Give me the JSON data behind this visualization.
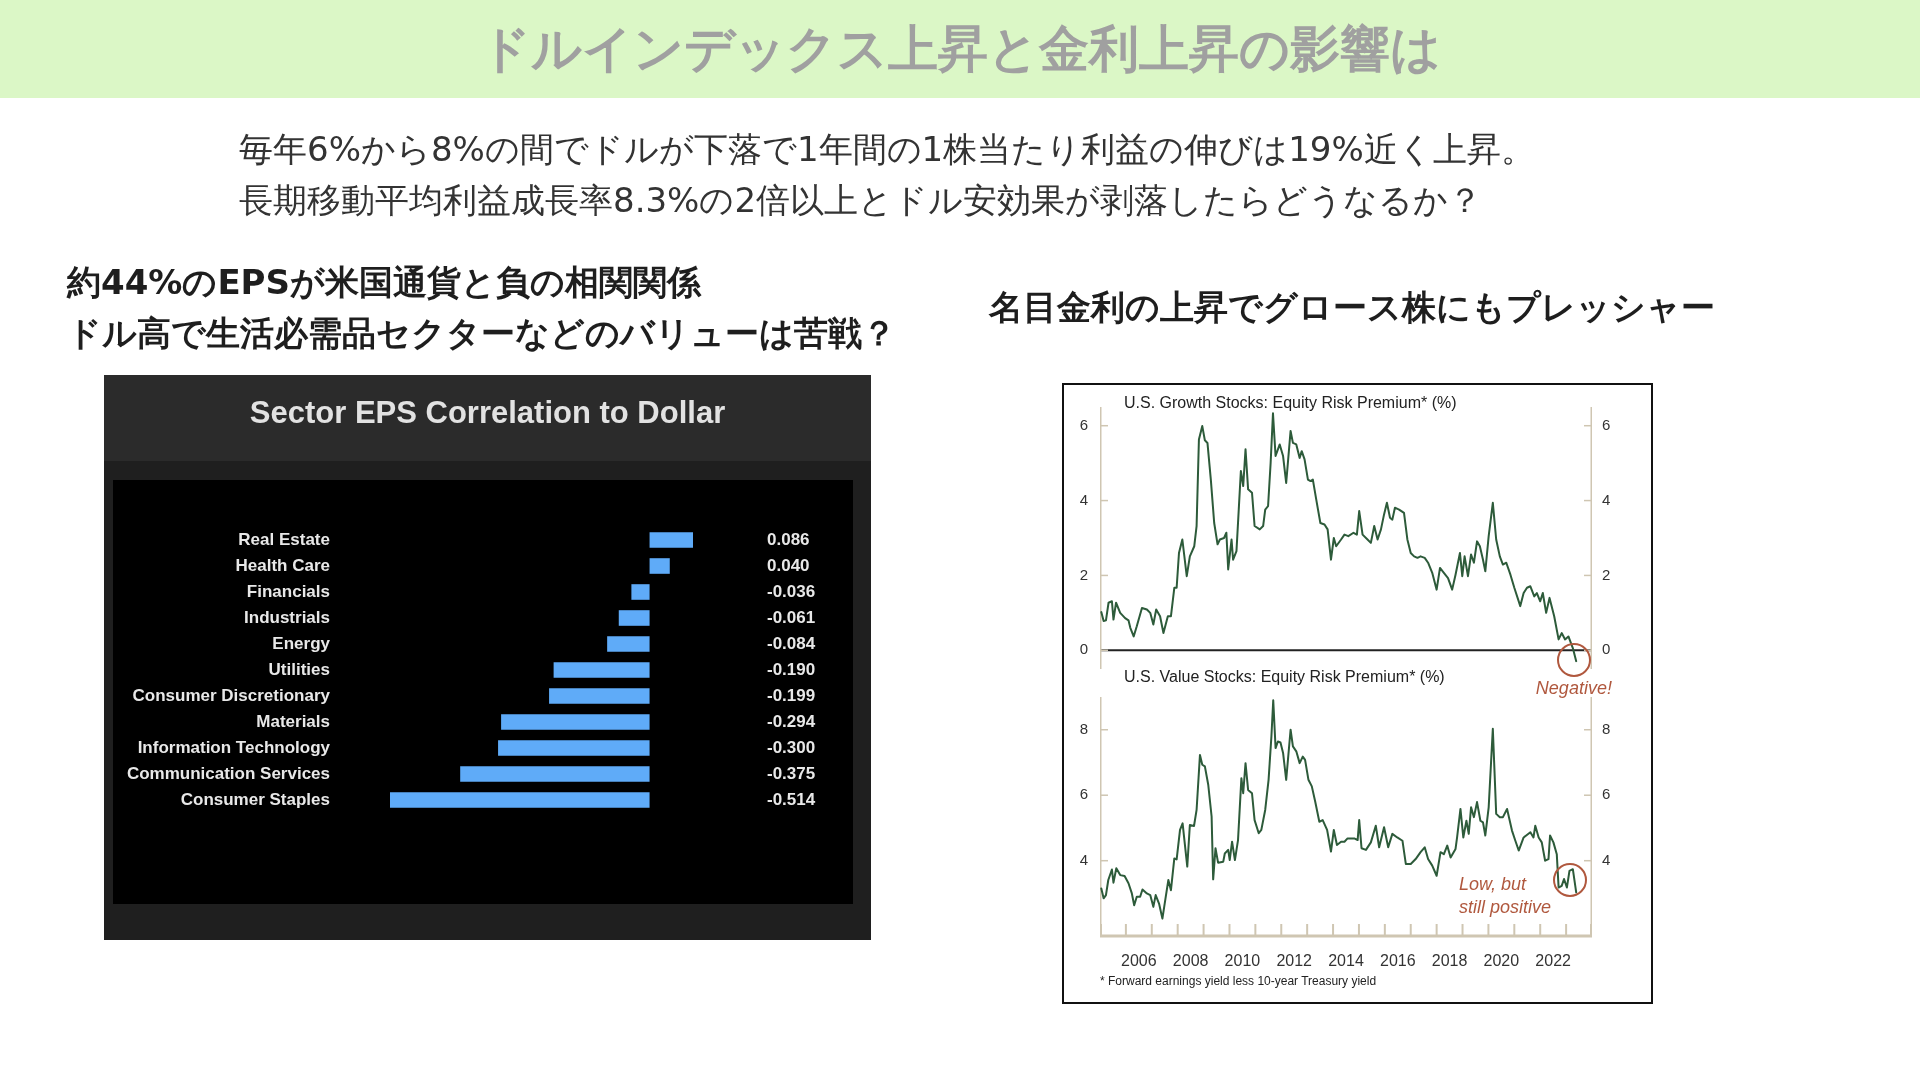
{
  "chart_data": [
    {
      "type": "other",
      "title": "ドルインデックス上昇と金利上昇の影響は",
      "annotations": [
        "毎年6%から8%の間でドルが下落で1年間の1株当たり利益の伸びは19%近く上昇。",
        "長期移動平均利益成長率8.3%の2倍以上とドル安効果が剥落したらどうなるか？"
      ]
    },
    {
      "type": "bar",
      "orientation": "horizontal",
      "title": "Sector EPS Correlation to Dollar",
      "subtitle": "約44%のEPSが米国通貨と負の相関関係",
      "annotations": [
        "ドル高で生活必需品セクターなどのバリューは苦戦？"
      ],
      "categories": [
        "Real Estate",
        "Health Care",
        "Financials",
        "Industrials",
        "Energy",
        "Utilities",
        "Consumer Discretionary",
        "Materials",
        "Information Technology",
        "Communication Services",
        "Consumer Staples"
      ],
      "values": [
        0.086,
        0.04,
        -0.036,
        -0.061,
        -0.084,
        -0.19,
        -0.199,
        -0.294,
        -0.3,
        -0.375,
        -0.514
      ],
      "value_labels": [
        "0.086",
        "0.040",
        "-0.036",
        "-0.061",
        "-0.084",
        "-0.190",
        "-0.199",
        "-0.294",
        "-0.300",
        "-0.375",
        "-0.514"
      ],
      "color": "#5fabf8",
      "tick_labels": "y"
    },
    {
      "type": "line",
      "title": "U.S. Growth Stocks: Equity Risk Premium* (%)",
      "subtitle": "名目金利の上昇でグロース株にもプレッシャー",
      "color": "#2d5b3a",
      "x": [
        2005.05,
        2005.14,
        2005.23,
        2005.33,
        2005.46,
        2005.52,
        2005.62,
        2005.78,
        2005.97,
        2006.1,
        2006.17,
        2006.3,
        2006.42,
        2006.62,
        2006.81,
        2006.94,
        2007.06,
        2007.17,
        2007.32,
        2007.45,
        2007.62,
        2007.74,
        2007.87,
        2007.96,
        2008.05,
        2008.18,
        2008.35,
        2008.47,
        2008.64,
        2008.73,
        2008.82,
        2008.95,
        2009.05,
        2009.15,
        2009.28,
        2009.41,
        2009.54,
        2009.63,
        2009.79,
        2009.88,
        2009.95,
        2010.08,
        2010.14,
        2010.27,
        2010.44,
        2010.53,
        2010.62,
        2010.72,
        2010.87,
        2010.97,
        2011.17,
        2011.3,
        2011.38,
        2011.49,
        2011.59,
        2011.68,
        2011.78,
        2011.94,
        2012.07,
        2012.19,
        2012.36,
        2012.45,
        2012.58,
        2012.71,
        2012.79,
        2012.9,
        2013.03,
        2013.13,
        2013.22,
        2013.35,
        2013.51,
        2013.67,
        2013.79,
        2013.92,
        2014.03,
        2014.12,
        2014.31,
        2014.44,
        2014.59,
        2014.79,
        2014.92,
        2015.01,
        2015.14,
        2015.33,
        2015.46,
        2015.59,
        2015.72,
        2015.85,
        2015.97,
        2016.08,
        2016.2,
        2016.29,
        2016.39,
        2016.55,
        2016.74,
        2016.87,
        2017.0,
        2017.13,
        2017.26,
        2017.38,
        2017.54,
        2017.67,
        2017.83,
        2018.0,
        2018.13,
        2018.28,
        2018.44,
        2018.6,
        2018.73,
        2018.9,
        2018.99,
        2019.08,
        2019.21,
        2019.33,
        2019.44,
        2019.56,
        2019.67,
        2019.79,
        2019.88,
        2020.01,
        2020.17,
        2020.3,
        2020.44,
        2020.56,
        2020.69,
        2020.85,
        2021.0,
        2021.23,
        2021.36,
        2021.49,
        2021.62,
        2021.77,
        2021.87,
        2022.0,
        2022.1,
        2022.23,
        2022.36,
        2022.54,
        2022.71,
        2022.83,
        2022.96,
        2023.09,
        2023.26,
        2023.39
      ],
      "values": [
        1.02,
        0.78,
        0.8,
        1.27,
        1.31,
        0.82,
        1.27,
        1.0,
        0.86,
        0.8,
        0.6,
        0.37,
        0.64,
        1.13,
        1.09,
        1.0,
        0.69,
        1.09,
        0.91,
        0.46,
        0.91,
        0.91,
        1.67,
        1.67,
        2.6,
        2.96,
        1.98,
        2.51,
        2.78,
        3.32,
        5.63,
        5.99,
        5.61,
        5.54,
        4.56,
        3.4,
        2.83,
        2.96,
        3.0,
        3.14,
        2.16,
        2.96,
        2.42,
        2.65,
        4.79,
        4.39,
        5.37,
        4.3,
        4.21,
        3.32,
        3.23,
        3.32,
        3.76,
        3.85,
        5.01,
        6.33,
        5.19,
        5.5,
        5.19,
        4.47,
        5.86,
        5.54,
        5.5,
        5.14,
        5.32,
        5.1,
        4.56,
        4.52,
        4.56,
        4.03,
        3.4,
        3.36,
        3.23,
        2.42,
        3.0,
        2.78,
        2.96,
        3.09,
        3.05,
        3.14,
        3.09,
        3.72,
        3.09,
        2.96,
        2.87,
        3.32,
        2.96,
        3.23,
        3.63,
        3.94,
        3.54,
        3.49,
        3.81,
        3.76,
        3.67,
        2.96,
        2.6,
        2.51,
        2.47,
        2.51,
        2.47,
        2.34,
        2.07,
        1.62,
        2.2,
        2.07,
        1.93,
        1.62,
        2.02,
        2.6,
        1.98,
        2.51,
        1.98,
        2.56,
        2.34,
        2.91,
        2.78,
        2.42,
        2.11,
        3.05,
        3.94,
        2.96,
        2.51,
        2.29,
        2.34,
        2.02,
        1.67,
        1.18,
        1.53,
        1.67,
        1.71,
        1.44,
        1.53,
        1.31,
        1.53,
        1.0,
        1.4,
        0.91,
        0.29,
        0.46,
        0.29,
        0.37,
        0.06,
        -0.29
      ],
      "xlim": [
        2005,
        2024
      ],
      "ylim": [
        -0.5,
        6.5
      ],
      "yticks": [
        0,
        2,
        4,
        6
      ],
      "y2lim": [
        -0.5,
        6.5
      ],
      "y2ticks": [
        0,
        2,
        4,
        6
      ],
      "tick_labels": "y",
      "ref_lines": [
        {
          "axis": "y",
          "value": 0,
          "color": "#222222"
        }
      ],
      "annotations": [
        {
          "text": "Negative!",
          "x": 2023.3,
          "y": -0.25
        }
      ]
    },
    {
      "type": "line",
      "title": "U.S. Value Stocks: Equity Risk Premium* (%)",
      "color": "#2d5b3a",
      "x": [
        2005.05,
        2005.14,
        2005.23,
        2005.32,
        2005.46,
        2005.52,
        2005.63,
        2005.78,
        2005.95,
        2006.1,
        2006.23,
        2006.32,
        2006.42,
        2006.55,
        2006.64,
        2006.81,
        2006.94,
        2007.06,
        2007.15,
        2007.28,
        2007.41,
        2007.54,
        2007.64,
        2007.74,
        2007.87,
        2007.96,
        2008.09,
        2008.19,
        2008.37,
        2008.47,
        2008.63,
        2008.73,
        2008.86,
        2008.95,
        2009.05,
        2009.18,
        2009.31,
        2009.37,
        2009.46,
        2009.56,
        2009.76,
        2009.82,
        2009.95,
        2010.01,
        2010.1,
        2010.21,
        2010.33,
        2010.46,
        2010.53,
        2010.62,
        2010.72,
        2010.87,
        2010.97,
        2011.13,
        2011.23,
        2011.38,
        2011.51,
        2011.62,
        2011.69,
        2011.78,
        2011.87,
        2011.97,
        2012.07,
        2012.19,
        2012.36,
        2012.45,
        2012.58,
        2012.71,
        2012.83,
        2012.92,
        2013.05,
        2013.18,
        2013.31,
        2013.47,
        2013.6,
        2013.77,
        2013.92,
        2014.03,
        2014.15,
        2014.31,
        2014.44,
        2014.56,
        2014.82,
        2014.95,
        2015.01,
        2015.1,
        2015.27,
        2015.46,
        2015.65,
        2015.78,
        2015.97,
        2016.13,
        2016.29,
        2016.48,
        2016.68,
        2016.81,
        2017.0,
        2017.19,
        2017.38,
        2017.54,
        2017.67,
        2017.83,
        2018.0,
        2018.15,
        2018.28,
        2018.41,
        2018.54,
        2018.73,
        2018.79,
        2018.92,
        2019.03,
        2019.15,
        2019.24,
        2019.33,
        2019.44,
        2019.56,
        2019.69,
        2019.79,
        2019.88,
        2020.01,
        2020.17,
        2020.3,
        2020.44,
        2020.56,
        2020.72,
        2020.91,
        2021.04,
        2021.17,
        2021.36,
        2021.62,
        2021.74,
        2021.81,
        2021.94,
        2022.06,
        2022.19,
        2022.32,
        2022.38,
        2022.51,
        2022.64,
        2022.71,
        2022.83,
        2022.92,
        2023.03,
        2023.13,
        2023.26,
        2023.39
      ],
      "values": [
        3.15,
        2.85,
        2.95,
        3.41,
        3.73,
        3.33,
        3.77,
        3.56,
        3.53,
        3.31,
        3.0,
        2.64,
        2.9,
        2.9,
        3.12,
        3.0,
        2.95,
        2.59,
        2.95,
        2.69,
        2.23,
        2.9,
        3.41,
        3.1,
        4.07,
        4.04,
        4.94,
        5.14,
        3.82,
        5.09,
        5.06,
        5.55,
        7.23,
        6.93,
        6.88,
        6.32,
        5.35,
        3.43,
        4.38,
        3.94,
        3.97,
        4.22,
        4.33,
        4.02,
        4.58,
        4.02,
        4.63,
        6.52,
        6.06,
        6.98,
        6.16,
        6.06,
        5.24,
        4.84,
        4.94,
        5.55,
        6.47,
        7.8,
        8.9,
        7.44,
        7.64,
        7.61,
        7.29,
        6.47,
        8.0,
        7.49,
        7.34,
        6.98,
        7.18,
        7.08,
        6.47,
        6.27,
        5.81,
        5.19,
        5.24,
        4.94,
        4.28,
        4.94,
        4.48,
        4.58,
        4.58,
        4.68,
        4.68,
        4.63,
        5.24,
        4.38,
        4.33,
        4.56,
        5.07,
        4.41,
        5.02,
        4.41,
        4.82,
        4.71,
        4.61,
        3.9,
        3.9,
        4.05,
        4.26,
        4.41,
        4.05,
        3.85,
        3.54,
        4.26,
        4.2,
        4.46,
        4.1,
        4.36,
        4.71,
        5.58,
        4.71,
        5.22,
        4.82,
        5.63,
        5.33,
        5.79,
        5.22,
        5.17,
        4.77,
        5.63,
        8.03,
        5.43,
        5.33,
        5.33,
        5.58,
        4.92,
        4.61,
        4.31,
        4.71,
        4.87,
        4.71,
        5.07,
        4.71,
        4.56,
        4.0,
        4.05,
        4.77,
        4.56,
        4.2,
        3.18,
        3.23,
        3.44,
        3.18,
        3.69,
        3.74,
        3.03
      ],
      "xlim": [
        2005,
        2024
      ],
      "xticks": [
        {
          "value": 2005,
          "label": null
        },
        {
          "value": 2006,
          "label": null
        },
        {
          "value": 2006.5,
          "label": "2006"
        },
        {
          "value": 2007,
          "label": null
        },
        {
          "value": 2008,
          "label": null
        },
        {
          "value": 2008.5,
          "label": "2008"
        },
        {
          "value": 2009,
          "label": null
        },
        {
          "value": 2010,
          "label": null
        },
        {
          "value": 2010.5,
          "label": "2010"
        },
        {
          "value": 2011,
          "label": null
        },
        {
          "value": 2012,
          "label": null
        },
        {
          "value": 2012.5,
          "label": "2012"
        },
        {
          "value": 2013,
          "label": null
        },
        {
          "value": 2014,
          "label": null
        },
        {
          "value": 2014.5,
          "label": "2014"
        },
        {
          "value": 2015,
          "label": null
        },
        {
          "value": 2016,
          "label": null
        },
        {
          "value": 2016.5,
          "label": "2016"
        },
        {
          "value": 2017,
          "label": null
        },
        {
          "value": 2018,
          "label": null
        },
        {
          "value": 2018.5,
          "label": "2018"
        },
        {
          "value": 2019,
          "label": null
        },
        {
          "value": 2020,
          "label": null
        },
        {
          "value": 2020.5,
          "label": "2020"
        },
        {
          "value": 2021,
          "label": null
        },
        {
          "value": 2022,
          "label": null
        },
        {
          "value": 2022.5,
          "label": "2022"
        },
        {
          "value": 2023,
          "label": null
        },
        {
          "value": 2024,
          "label": null
        }
      ],
      "ylim": [
        1.7,
        9.0
      ],
      "yticks": [
        4,
        6,
        8
      ],
      "y2lim": [
        1.7,
        9.0
      ],
      "y2ticks": [
        4,
        6,
        8
      ],
      "annotations": [
        {
          "text": "Low, but\nstill positive",
          "x": 2023.15,
          "y": 3.4
        },
        "* Forward earnings yield less 10-year Treasury yield"
      ]
    }
  ]
}
